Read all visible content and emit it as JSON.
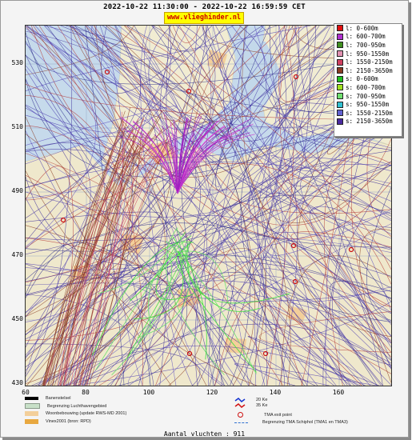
{
  "header": {
    "period": "2022-10-22 11:30:00 - 2022-10-22 16:59:59 CET",
    "site": "www.vlieghinder.nl"
  },
  "axes": {
    "y_ticks": [
      "530",
      "510",
      "490",
      "470",
      "450",
      "430"
    ],
    "x_ticks": [
      "80",
      "100",
      "120",
      "140",
      "160"
    ],
    "x_start_label": "60"
  },
  "legend": [
    {
      "label": "l: 0-600m",
      "color": "#e01010"
    },
    {
      "label": "l: 600-700m",
      "color": "#b030d0"
    },
    {
      "label": "l: 700-950m",
      "color": "#409020"
    },
    {
      "label": "l: 950-1550m",
      "color": "#e090b0"
    },
    {
      "label": "l: 1550-2150m",
      "color": "#d04060"
    },
    {
      "label": "l: 2150-3650m",
      "color": "#8a3a22"
    },
    {
      "label": "s: 0-600m",
      "color": "#20c020"
    },
    {
      "label": "s: 600-700m",
      "color": "#a0e020"
    },
    {
      "label": "s: 700-950m",
      "color": "#70e070"
    },
    {
      "label": "s: 950-1550m",
      "color": "#30c0d0"
    },
    {
      "label": "s: 1550-2150m",
      "color": "#6060d0"
    },
    {
      "label": "s: 2150-3650m",
      "color": "#4a2aa0"
    }
  ],
  "bottom_legend": {
    "banenstelsel": "Banenstelsel",
    "luchthavengebied": "Begrenzing Luchthavengebied",
    "woonbebouwing": "Woonbebouwing (update RWS-MD 2001)",
    "vinex": "Vinex2001 (bron: RPD)",
    "ke_35": "35 Ke",
    "ke_20": "20 Ke",
    "tma_exit": "TMA exit point",
    "tma_boundary": "Begrenzing TMA Schiphol  (TMA1 en TMA3)"
  },
  "footer": {
    "count_text": "Aantal vluchten : 911"
  }
}
